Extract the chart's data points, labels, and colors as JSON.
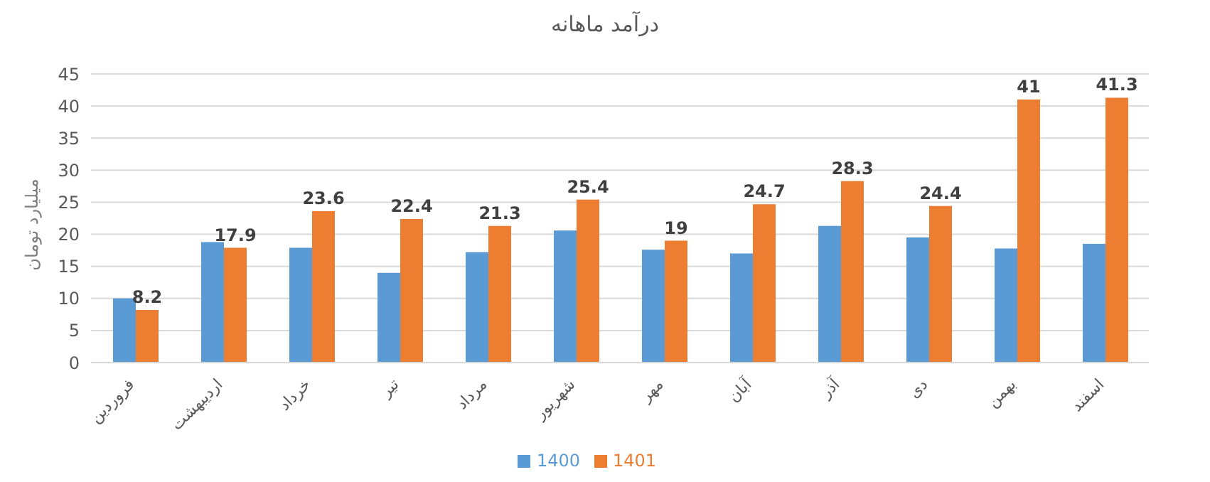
{
  "chart_data": {
    "type": "bar",
    "title": "درآمد ماهانه",
    "ylabel": "میلیارد تومان",
    "categories": [
      "فروردین",
      "اردیبهشت",
      "خرداد",
      "تیر",
      "مرداد",
      "شهریور",
      "مهر",
      "آبان",
      "آذر",
      "دی",
      "بهمن",
      "اسفند"
    ],
    "series": [
      {
        "name": "1400",
        "color": "#5b9bd5",
        "values": [
          10.0,
          18.8,
          17.9,
          14.0,
          17.2,
          20.6,
          17.6,
          17.0,
          21.3,
          19.5,
          17.8,
          18.5
        ]
      },
      {
        "name": "1401",
        "color": "#ed7d31",
        "values": [
          8.2,
          17.9,
          23.6,
          22.4,
          21.3,
          25.4,
          19,
          24.7,
          28.3,
          24.4,
          41,
          41.3
        ],
        "value_labels": [
          "8.2",
          "17.9",
          "23.6",
          "22.4",
          "21.3",
          "25.4",
          "19",
          "24.7",
          "28.3",
          "24.4",
          "41",
          "41.3"
        ]
      }
    ],
    "ylim": [
      0,
      45
    ],
    "yticks": [
      0,
      5,
      10,
      15,
      20,
      25,
      30,
      35,
      40,
      45
    ],
    "grid": "y",
    "legend": "bottom"
  }
}
